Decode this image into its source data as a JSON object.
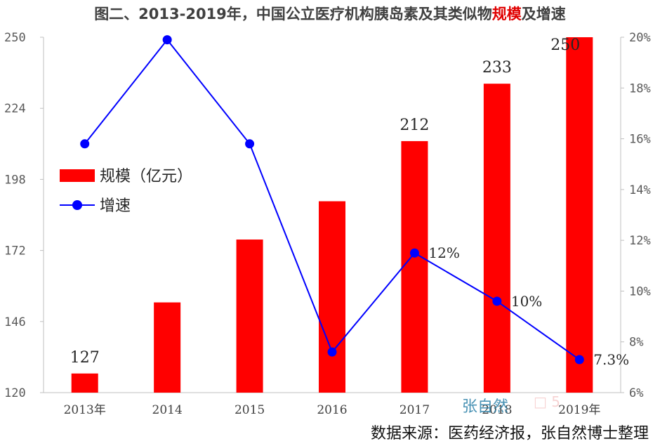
{
  "title": {
    "prefix": "图二、2013-2019年，中国公立医疗机构胰岛素及其类似物",
    "highlight": "规模",
    "suffix": "及增速"
  },
  "source": "数据来源：医药经济报，张自然博士整理",
  "watermark": "张自然",
  "watermark_faint": "□ 5",
  "colors": {
    "bar": "#ff0000",
    "line": "#0000ff",
    "title_highlight": "#e00000"
  },
  "chart_data": {
    "type": "bar+line",
    "categories": [
      "2013年",
      "2014",
      "2015",
      "2016",
      "2017",
      "2018",
      "2019年"
    ],
    "series": [
      {
        "name": "规模（亿元）",
        "type": "bar",
        "axis": "left",
        "values": [
          127,
          153,
          176,
          190,
          212,
          233,
          250
        ],
        "data_labels": [
          "127",
          "",
          "",
          "",
          "212",
          "233",
          "250"
        ]
      },
      {
        "name": "增速",
        "type": "line",
        "axis": "right",
        "values": [
          15.8,
          19.9,
          15.8,
          7.6,
          11.5,
          9.6,
          7.3
        ],
        "data_labels": [
          "",
          "",
          "",
          "",
          "12%",
          "10%",
          "7.3%"
        ]
      }
    ],
    "y_left": {
      "min": 120,
      "max": 250,
      "ticks": [
        120,
        146,
        172,
        198,
        224,
        250
      ]
    },
    "y_right": {
      "min": 6,
      "max": 20,
      "ticks": [
        "6%",
        "8%",
        "10%",
        "12%",
        "14%",
        "16%",
        "18%",
        "20%"
      ]
    },
    "legend_position": "left",
    "grid": false
  }
}
